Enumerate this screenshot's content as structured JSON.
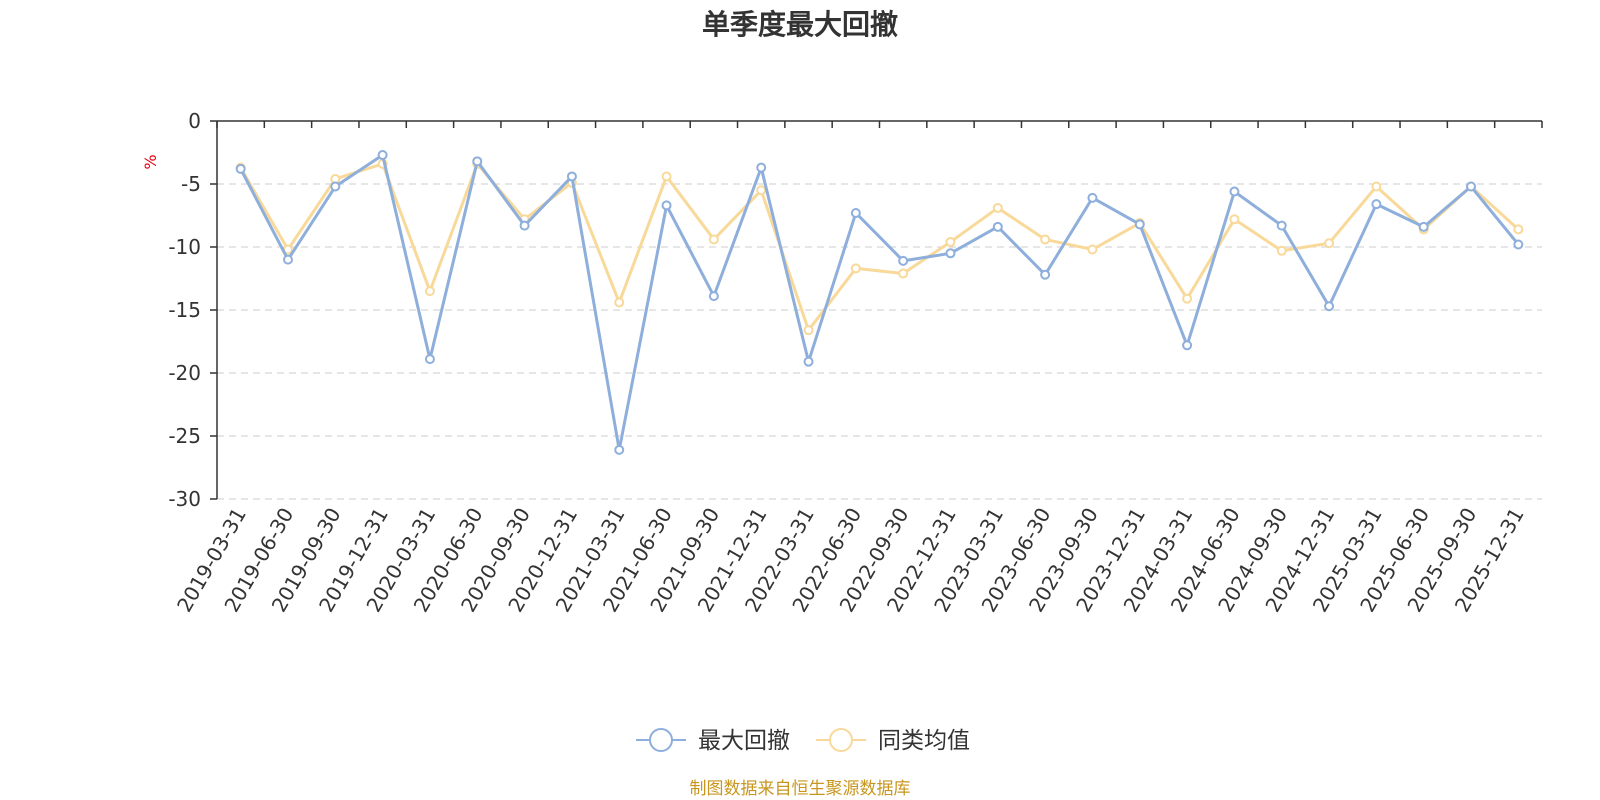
{
  "chart_data": {
    "type": "line",
    "title": "单季度最大回撤",
    "ylabel": "%",
    "ylim": [
      -30,
      0
    ],
    "yticks": [
      0,
      -5,
      -10,
      -15,
      -20,
      -25,
      -30
    ],
    "grid": true,
    "legend_position": "bottom",
    "categories": [
      "2019-03-31",
      "2019-06-30",
      "2019-09-30",
      "2019-12-31",
      "2020-03-31",
      "2020-06-30",
      "2020-09-30",
      "2020-12-31",
      "2021-03-31",
      "2021-06-30",
      "2021-09-30",
      "2021-12-31",
      "2022-03-31",
      "2022-06-30",
      "2022-09-30",
      "2022-12-31",
      "2023-03-31",
      "2023-06-30",
      "2023-09-30",
      "2023-12-31",
      "2024-03-31",
      "2024-06-30",
      "2024-09-30",
      "2024-12-31",
      "2025-03-31",
      "2025-06-30",
      "2025-09-30",
      "2025-12-31"
    ],
    "series": [
      {
        "name": "最大回撤",
        "color": "#8eaedb",
        "values": [
          -3.8,
          -11.0,
          -5.2,
          -2.7,
          -18.9,
          -3.2,
          -8.3,
          -4.4,
          -26.1,
          -6.7,
          -13.9,
          -3.7,
          -19.1,
          -7.3,
          -11.1,
          -10.5,
          -8.4,
          -12.2,
          -6.1,
          -8.2,
          -17.8,
          -5.6,
          -8.3,
          -14.7,
          -6.6,
          -8.4,
          -5.2,
          -9.8
        ]
      },
      {
        "name": "同类均值",
        "color": "#f8d99a",
        "values": [
          -3.7,
          -10.2,
          -4.6,
          -3.4,
          -13.5,
          -3.4,
          -7.8,
          -4.9,
          -14.4,
          -4.4,
          -9.4,
          -5.5,
          -16.6,
          -11.7,
          -12.1,
          -9.6,
          -6.9,
          -9.4,
          -10.2,
          -8.1,
          -14.1,
          -7.8,
          -10.3,
          -9.7,
          -5.2,
          -8.6,
          -5.2,
          -8.6
        ]
      }
    ],
    "source": "制图数据来自恒生聚源数据库"
  },
  "colors": {
    "axis": "#333333",
    "grid": "#cccccc",
    "unit": "#e60012",
    "source": "#c8961e"
  }
}
